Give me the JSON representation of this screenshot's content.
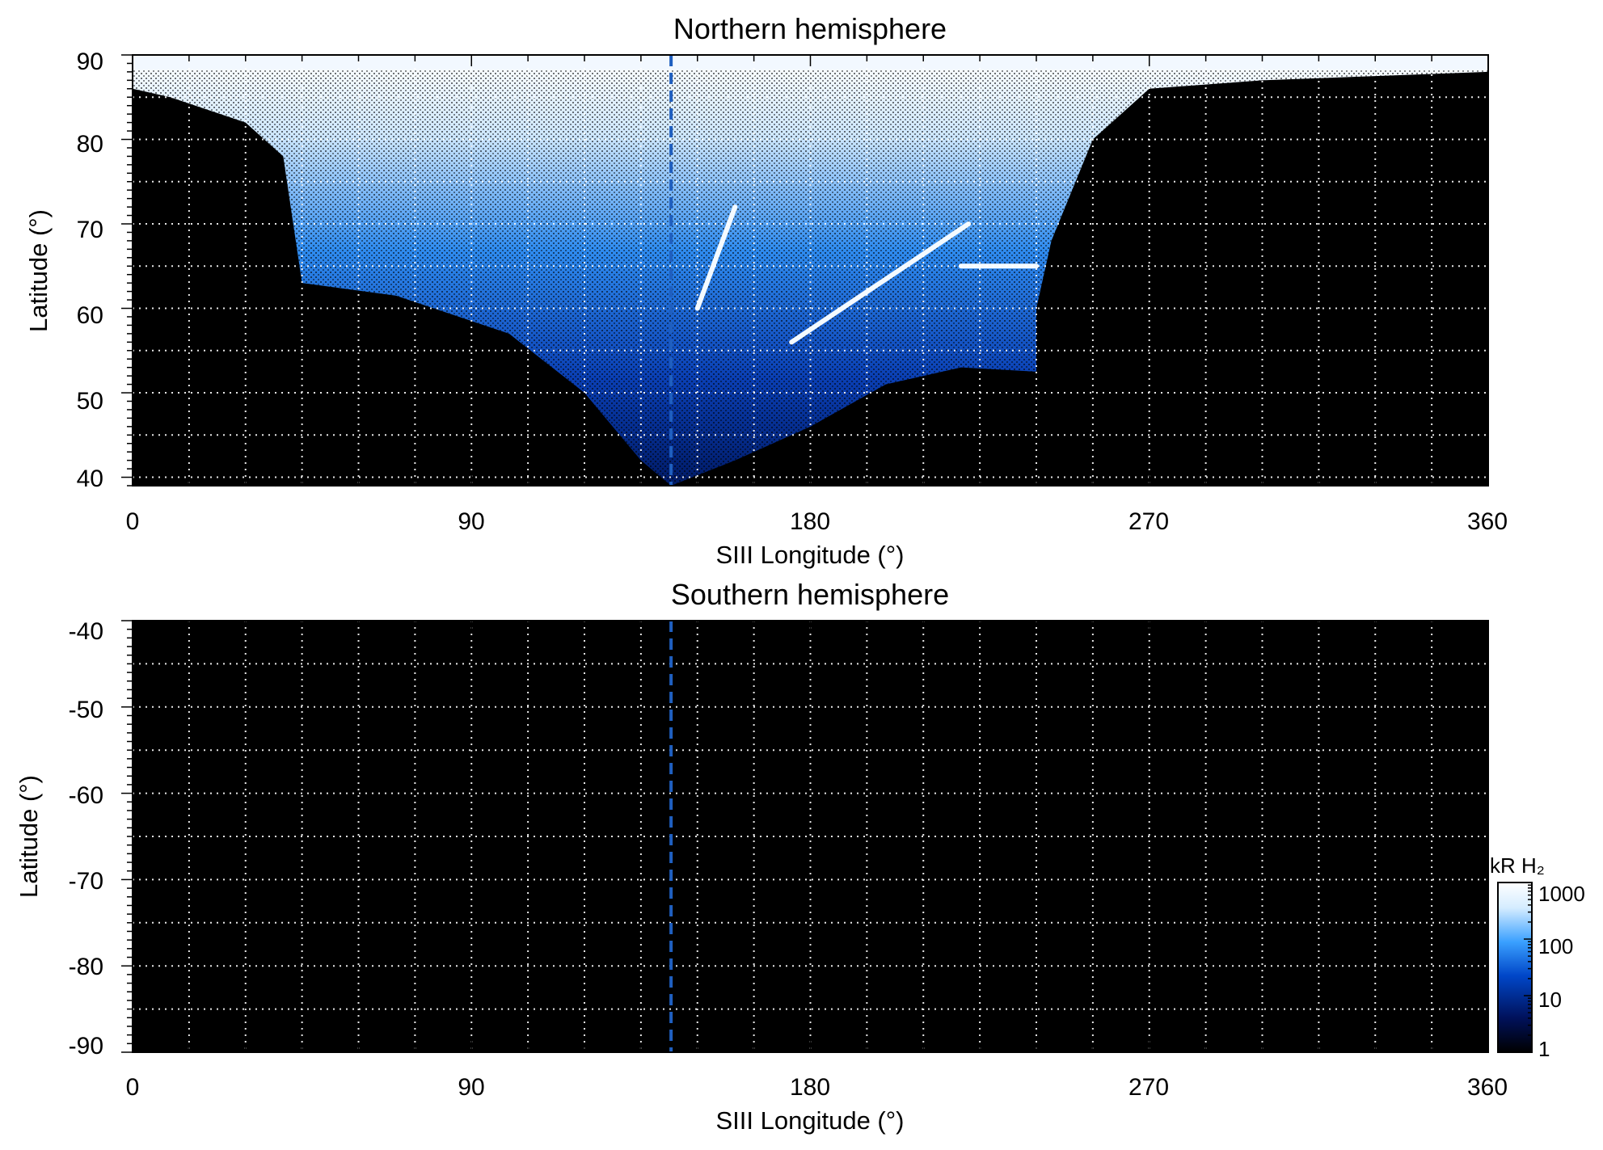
{
  "chart_data": [
    {
      "type": "heatmap",
      "title": "Northern hemisphere",
      "xlabel": "SIII Longitude (°)",
      "ylabel": "Latitude (°)",
      "xlim": [
        0,
        360
      ],
      "ylim": [
        39,
        90
      ],
      "xticks": [
        0,
        90,
        180,
        270,
        360
      ],
      "yticks": [
        40,
        50,
        60,
        70,
        80,
        90
      ],
      "grid": true,
      "grid_style": "dotted white",
      "grid_x_step": 15,
      "grid_y_step": 5,
      "background_color": "#000000",
      "marker_line": {
        "longitude": 143,
        "style": "dashed",
        "color": "#1f5fc0"
      },
      "emission_region": {
        "description_longitudes": [
          45,
          70,
          100,
          120,
          135,
          143,
          160,
          180,
          200,
          220,
          240
        ],
        "lower_boundary_latitude": [
          63,
          61.5,
          57,
          50,
          42,
          39,
          42,
          46,
          51,
          53,
          52.5
        ]
      },
      "bright_arcs": [
        {
          "from": [
            175,
            56
          ],
          "to": [
            222,
            70
          ]
        },
        {
          "from": [
            220,
            65
          ],
          "to": [
            240,
            65
          ]
        },
        {
          "from": [
            150,
            60
          ],
          "to": [
            160,
            72
          ]
        }
      ]
    },
    {
      "type": "heatmap",
      "title": "Southern hemisphere",
      "xlabel": "SIII Longitude (°)",
      "ylabel": "Latitude (°)",
      "xlim": [
        0,
        360
      ],
      "ylim": [
        -90,
        -40
      ],
      "xticks": [
        0,
        90,
        180,
        270,
        360
      ],
      "yticks": [
        -40,
        -50,
        -60,
        -70,
        -80,
        -90
      ],
      "grid": true,
      "grid_style": "dotted white",
      "grid_x_step": 15,
      "grid_y_step": 5,
      "background_color": "#000000",
      "marker_line": {
        "longitude": 143,
        "style": "dashed",
        "color": "#1f5fc0"
      }
    }
  ],
  "colorbar": {
    "label": "kR H₂",
    "scale": "log",
    "range": [
      1,
      1000
    ],
    "ticks": [
      1000,
      100,
      10,
      1
    ],
    "colors": [
      "#000000",
      "#00115a",
      "#0046c8",
      "#3aa0ff",
      "#d4ecff",
      "#ffffff"
    ]
  },
  "texts": {
    "north_title": "Northern hemisphere",
    "south_title": "Southern hemisphere",
    "xlabel": "SIII Longitude (°)",
    "ylabel": "Latitude (°)",
    "cbar_label": "kR H₂",
    "x_tick_0": "0",
    "x_tick_90": "90",
    "x_tick_180": "180",
    "x_tick_270": "270",
    "x_tick_360": "360",
    "n_tick_40": "40",
    "n_tick_50": "50",
    "n_tick_60": "60",
    "n_tick_70": "70",
    "n_tick_80": "80",
    "n_tick_90": "90",
    "s_tick_40": "-40",
    "s_tick_50": "-50",
    "s_tick_60": "-60",
    "s_tick_70": "-70",
    "s_tick_80": "-80",
    "s_tick_90": "-90",
    "cb_1000": "1000",
    "cb_100": "100",
    "cb_10": "10",
    "cb_1": "1"
  }
}
